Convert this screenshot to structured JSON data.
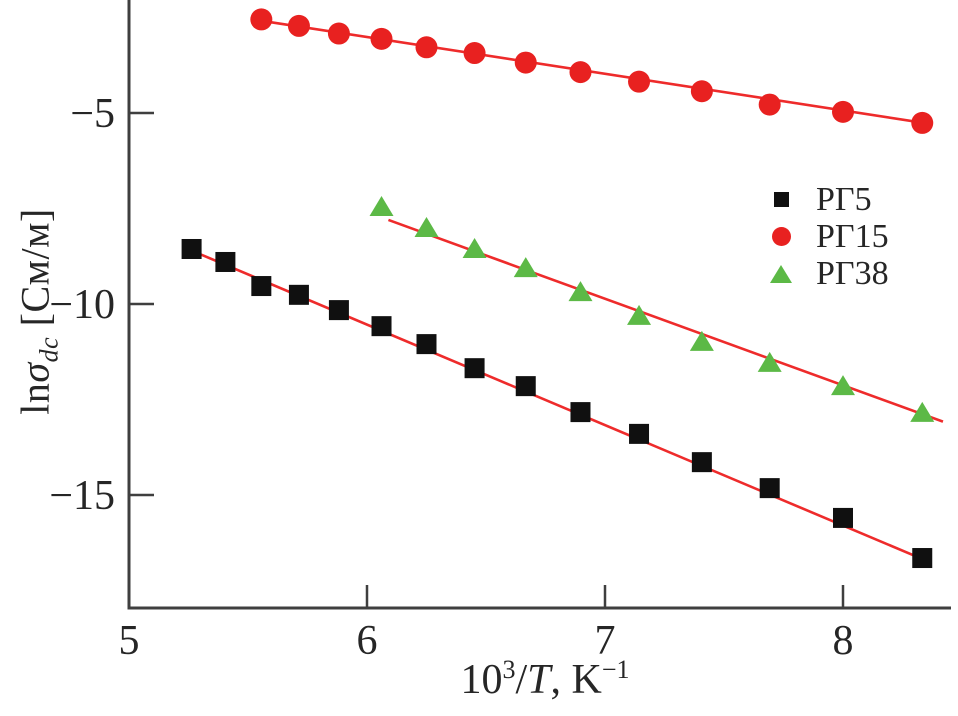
{
  "figure": {
    "background": "#ffffff",
    "axis_color": "#3f3f3f",
    "text_color": "#262626"
  },
  "chart_data": {
    "type": "scatter",
    "title": "",
    "xlabel": "10³/T, K⁻¹",
    "ylabel": "lnσ_dc [См/м]",
    "xlabel_parts": {
      "base": "10",
      "exp": "3",
      "slash": "/",
      "var": "T",
      "units": ", K",
      "units_exp": "−1"
    },
    "ylabel_parts": {
      "ln": "ln",
      "sigma": "σ",
      "sub": "dc",
      "units": " [См/м]"
    },
    "xlim": [
      5.0,
      8.45
    ],
    "ylim": [
      -18.0,
      -2.0
    ],
    "xticks": [
      5,
      6,
      7,
      8
    ],
    "yticks": [
      -5,
      -10,
      -15
    ],
    "grid": false,
    "legend_position": "center-right",
    "fit_line_color": "#ee2b2b",
    "series": [
      {
        "name": "РГ5",
        "marker": "square",
        "color": "#101010",
        "x": [
          5.263,
          5.405,
          5.556,
          5.714,
          5.882,
          6.061,
          6.25,
          6.452,
          6.667,
          6.897,
          7.143,
          7.407,
          7.692,
          8.0,
          8.333
        ],
        "y": [
          -8.56,
          -8.9,
          -9.53,
          -9.76,
          -10.16,
          -10.58,
          -11.05,
          -11.68,
          -12.15,
          -12.83,
          -13.4,
          -14.14,
          -14.82,
          -15.6,
          -16.65
        ],
        "fit": [
          [
            5.27,
            -8.62
          ],
          [
            8.35,
            -16.72
          ]
        ]
      },
      {
        "name": "РГ15",
        "marker": "circle",
        "color": "#e82120",
        "x": [
          5.556,
          5.714,
          5.882,
          6.061,
          6.25,
          6.452,
          6.667,
          6.897,
          7.143,
          7.407,
          7.692,
          8.0,
          8.333
        ],
        "y": [
          -2.55,
          -2.72,
          -2.92,
          -3.06,
          -3.28,
          -3.43,
          -3.68,
          -3.93,
          -4.18,
          -4.43,
          -4.78,
          -4.97,
          -5.26
        ],
        "fit": [
          [
            5.54,
            -2.57
          ],
          [
            8.34,
            -5.26
          ]
        ]
      },
      {
        "name": "РГ38",
        "marker": "triangle",
        "color": "#5cb946",
        "x": [
          6.061,
          6.25,
          6.452,
          6.667,
          6.897,
          7.143,
          7.407,
          7.692,
          8.0,
          8.333
        ],
        "y": [
          -7.46,
          -8.01,
          -8.56,
          -9.06,
          -9.69,
          -10.31,
          -10.99,
          -11.54,
          -12.15,
          -12.85
        ],
        "fit": [
          [
            6.09,
            -7.8
          ],
          [
            8.42,
            -13.08
          ]
        ]
      }
    ]
  }
}
